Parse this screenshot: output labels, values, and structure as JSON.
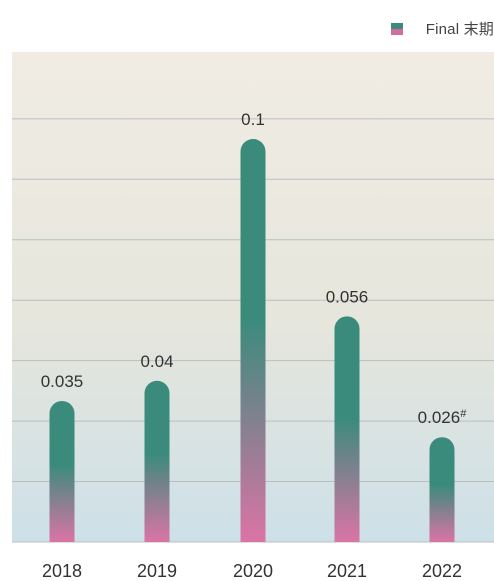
{
  "legend": {
    "label": "Final 末期",
    "swatch_color_top": "#3a8a7d",
    "swatch_color_bottom": "#d26e9b"
  },
  "chart_data": {
    "type": "bar",
    "categories": [
      "2018",
      "2019",
      "2020",
      "2021",
      "2022"
    ],
    "series": [
      {
        "name": "Final 末期",
        "values": [
          0.035,
          0.04,
          0.1,
          0.056,
          0.026
        ],
        "labels": [
          "0.035",
          "0.04",
          "0.1",
          "0.056",
          "0.026"
        ],
        "label_marks": [
          "",
          "",
          "",
          "",
          "#"
        ]
      }
    ],
    "ylim": [
      0,
      0.11
    ],
    "gridline_step": 0.01,
    "grid": true,
    "legend_position": "top-right",
    "bar_color_top": "#3a8b7c",
    "bar_color_bottom": "#db74a6",
    "background_top": "#f0ece4",
    "background_bottom": "#cde0e8"
  }
}
